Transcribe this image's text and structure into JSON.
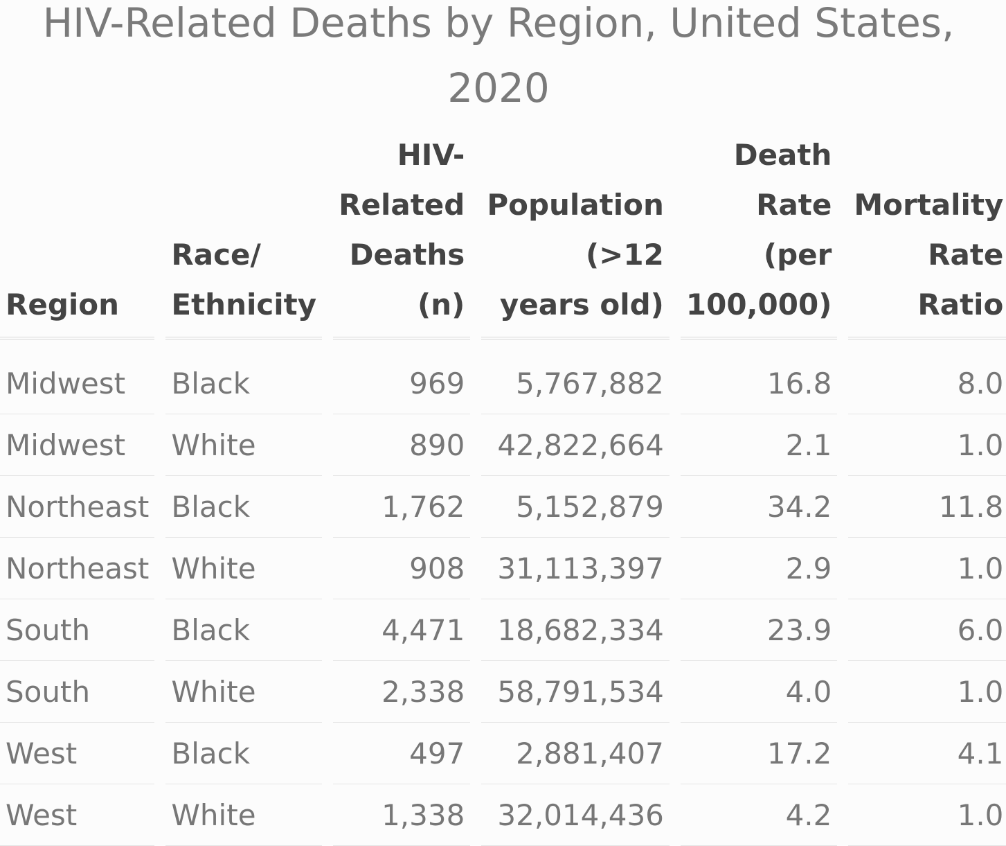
{
  "chart_data": {
    "type": "table",
    "title": "HIV-Related Deaths by Region, United States, 2020",
    "columns": [
      {
        "key": "region",
        "label": "Region",
        "align": "left"
      },
      {
        "key": "race",
        "label": "Race/ Ethnicity",
        "align": "left"
      },
      {
        "key": "deaths",
        "label": "HIV-Related Deaths (n)",
        "align": "right"
      },
      {
        "key": "population",
        "label": "Population (>12 years old)",
        "align": "right"
      },
      {
        "key": "rate",
        "label": "Death Rate (per 100,000)",
        "align": "right"
      },
      {
        "key": "ratio",
        "label": "Mortality Rate Ratio",
        "align": "right"
      }
    ],
    "rows": [
      {
        "region": "Midwest",
        "race": "Black",
        "deaths": "969",
        "population": "5,767,882",
        "rate": "16.8",
        "ratio": "8.0"
      },
      {
        "region": "Midwest",
        "race": "White",
        "deaths": "890",
        "population": "42,822,664",
        "rate": "2.1",
        "ratio": "1.0"
      },
      {
        "region": "Northeast",
        "race": "Black",
        "deaths": "1,762",
        "population": "5,152,879",
        "rate": "34.2",
        "ratio": "11.8"
      },
      {
        "region": "Northeast",
        "race": "White",
        "deaths": "908",
        "population": "31,113,397",
        "rate": "2.9",
        "ratio": "1.0"
      },
      {
        "region": "South",
        "race": "Black",
        "deaths": "4,471",
        "population": "18,682,334",
        "rate": "23.9",
        "ratio": "6.0"
      },
      {
        "region": "South",
        "race": "White",
        "deaths": "2,338",
        "population": "58,791,534",
        "rate": "4.0",
        "ratio": "1.0"
      },
      {
        "region": "West",
        "race": "Black",
        "deaths": "497",
        "population": "2,881,407",
        "rate": "17.2",
        "ratio": "4.1"
      },
      {
        "region": "West",
        "race": "White",
        "deaths": "1,338",
        "population": "32,014,436",
        "rate": "4.2",
        "ratio": "1.0"
      }
    ]
  }
}
